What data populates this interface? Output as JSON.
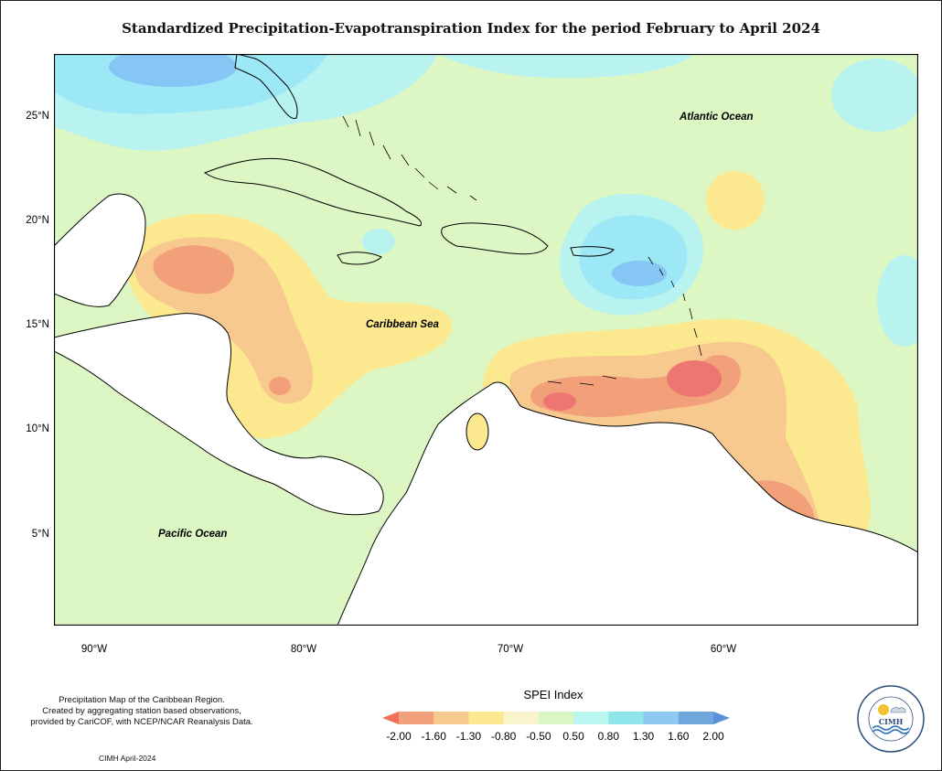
{
  "title": "Standardized Precipitation-Evapotranspiration Index for the period February to April 2024",
  "map_labels": {
    "atlantic": "Atlantic Ocean",
    "caribbean": "Caribbean Sea",
    "pacific": "Pacific Ocean"
  },
  "latitude_ticks": [
    "25°N",
    "20°N",
    "15°N",
    "10°N",
    "5°N"
  ],
  "longitude_ticks": [
    "90°W",
    "80°W",
    "70°W",
    "60°W"
  ],
  "notes": [
    "Precipitation Map of the Caribbean Region.",
    "Created by aggregating station based observations,",
    "provided by CariCOF, with NCEP/NCAR Reanalysis Data."
  ],
  "credit": "CIMH April-2024",
  "legend": {
    "title": "SPEI Index",
    "ticks": [
      "-2.00",
      "-1.60",
      "-1.30",
      "-0.80",
      "-0.50",
      "0.50",
      "0.80",
      "1.30",
      "1.60",
      "2.00"
    ],
    "colors": [
      "#f0705a",
      "#f3a17c",
      "#f8c98e",
      "#fbe891",
      "#f8f4cc",
      "#daf7c3",
      "#b9f6ef",
      "#8fe6ea",
      "#8ec8f3",
      "#6fa6dc",
      "#5b8fdc"
    ]
  },
  "logo": {
    "text": "CIMH"
  },
  "colors": {
    "near_normal": "#dcf7c3",
    "wet": "#b9f3f0",
    "very_wet": "#9de8f7",
    "extreme_wet": "#86c6f5",
    "dry": "#fbe88f",
    "moderate_dry": "#f8c98e",
    "severe_dry": "#f2a07a",
    "extreme_dry": "#ee7672"
  }
}
